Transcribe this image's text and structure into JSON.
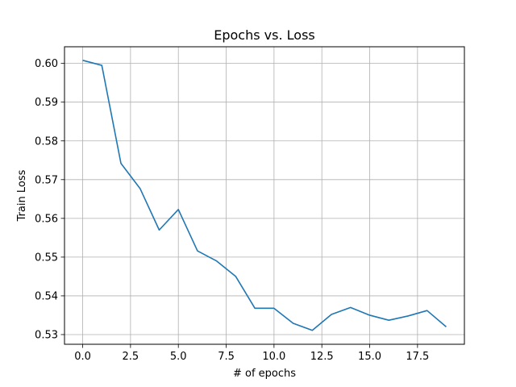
{
  "chart_data": {
    "type": "line",
    "title": "Epochs vs. Loss",
    "xlabel": "# of epochs",
    "ylabel": "Train Loss",
    "xlim": [
      -0.95,
      19.95
    ],
    "ylim": [
      0.5275,
      0.6043
    ],
    "x_ticks": [
      0.0,
      2.5,
      5.0,
      7.5,
      10.0,
      12.5,
      15.0,
      17.5
    ],
    "x_tick_labels": [
      "0.0",
      "2.5",
      "5.0",
      "7.5",
      "10.0",
      "12.5",
      "15.0",
      "17.5"
    ],
    "y_ticks": [
      0.53,
      0.54,
      0.55,
      0.56,
      0.57,
      0.58,
      0.59,
      0.6
    ],
    "y_tick_labels": [
      "0.53",
      "0.54",
      "0.55",
      "0.56",
      "0.57",
      "0.58",
      "0.59",
      "0.60"
    ],
    "grid": true,
    "line_color": "#1f77b4",
    "series": [
      {
        "x": [
          0,
          1,
          2,
          3,
          4,
          5,
          6,
          7,
          8,
          9,
          10,
          11,
          12,
          13,
          14,
          15,
          16,
          17,
          18,
          19
        ],
        "values": [
          0.6008,
          0.5995,
          0.5742,
          0.5677,
          0.557,
          0.5623,
          0.5516,
          0.549,
          0.545,
          0.5368,
          0.5368,
          0.5329,
          0.5311,
          0.5352,
          0.537,
          0.535,
          0.5337,
          0.5348,
          0.5362,
          0.532
        ]
      }
    ]
  }
}
